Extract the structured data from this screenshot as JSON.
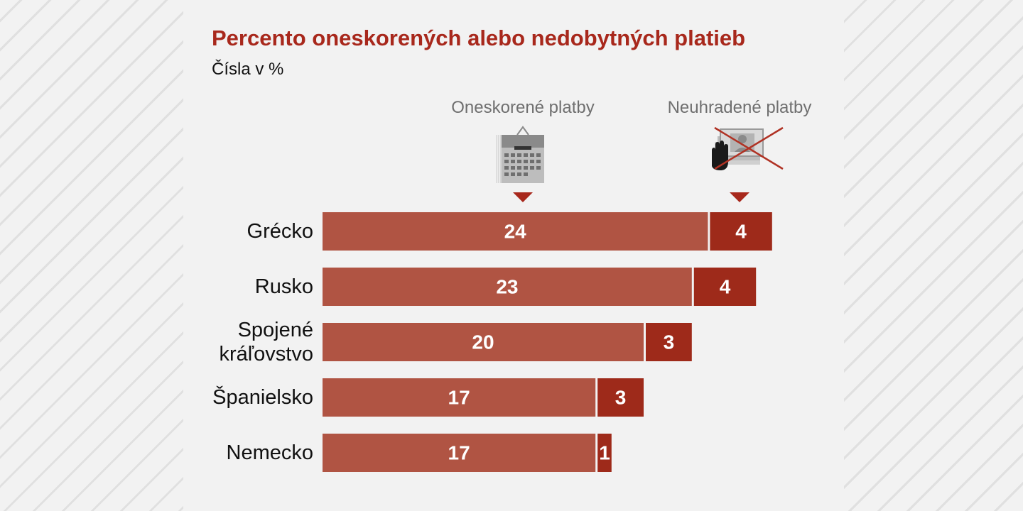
{
  "chart_data": {
    "type": "bar",
    "stacked": true,
    "orientation": "horizontal",
    "title": "Percento oneskorených alebo nedobytných platieb",
    "subtitle": "Čísla v %",
    "categories": [
      "Grécko",
      "Rusko",
      "Spojené kráľovstvo",
      "Španielsko",
      "Nemecko"
    ],
    "category_lines": [
      [
        "Grécko"
      ],
      [
        "Rusko"
      ],
      [
        "Spojené",
        "kráľovstvo"
      ],
      [
        "Španielsko"
      ],
      [
        "Nemecko"
      ]
    ],
    "series": [
      {
        "name": "Oneskorené platby",
        "values": [
          24,
          23,
          20,
          17,
          17
        ],
        "color": "#b05443"
      },
      {
        "name": "Neuhradené platby",
        "values": [
          4,
          4,
          3,
          3,
          1
        ],
        "color": "#9e2a1a"
      }
    ],
    "value_labels": true,
    "grid": false
  },
  "header": {
    "title": "Percento oneskorených alebo nedobytných platieb",
    "subtitle": "Čísla v %"
  },
  "legend": {
    "late_label": "Oneskorené platby",
    "late_icon": "calendar-icon",
    "unpaid_label": "Neuhradené platby",
    "unpaid_icon": "crossed-out-payment-icon"
  }
}
